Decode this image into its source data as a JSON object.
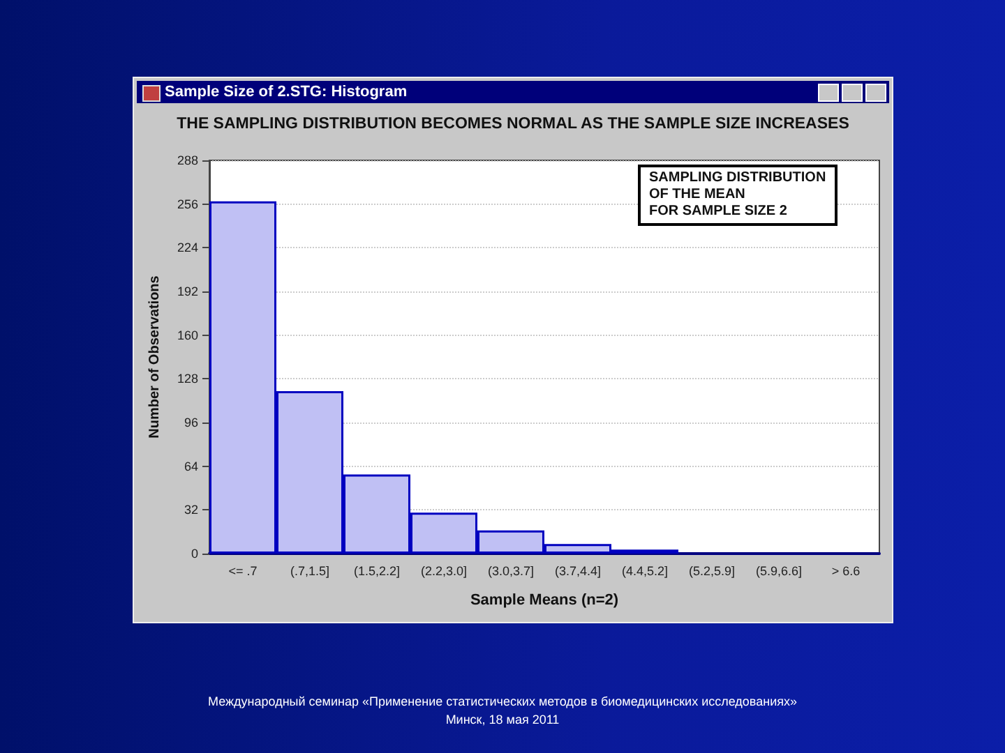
{
  "chart_data": {
    "type": "bar",
    "title": "THE SAMPLING DISTRIBUTION BECOMES NORMAL AS THE SAMPLE SIZE INCREASES",
    "xlabel": "Sample Means (n=2)",
    "ylabel": "Number of Observations",
    "categories": [
      "<= .7",
      "(.7,1.5]",
      "(1.5,2.2]",
      "(2.2,3.0]",
      "(3.0,3.7]",
      "(3.7,4.4]",
      "(4.4,5.2]",
      "(5.2,5.9]",
      "(5.9,6.6]",
      "> 6.6"
    ],
    "values": [
      258,
      119,
      58,
      30,
      17,
      7,
      3,
      0,
      0,
      0
    ],
    "color": "#c0c0f4",
    "ylim": [
      0,
      288
    ],
    "yticks": [
      0,
      32,
      64,
      96,
      128,
      160,
      192,
      224,
      256,
      288
    ],
    "grid": "y",
    "annotations": [
      "Sample Size of 2.STG: Histogram",
      "SAMPLING DISTRIBUTION\nOF THE MEAN\nFOR SAMPLE SIZE 2",
      "Международный семинар «Применение статистических методов в биомедицинских исследованиях»",
      "Минск, 18 мая 2011"
    ]
  }
}
